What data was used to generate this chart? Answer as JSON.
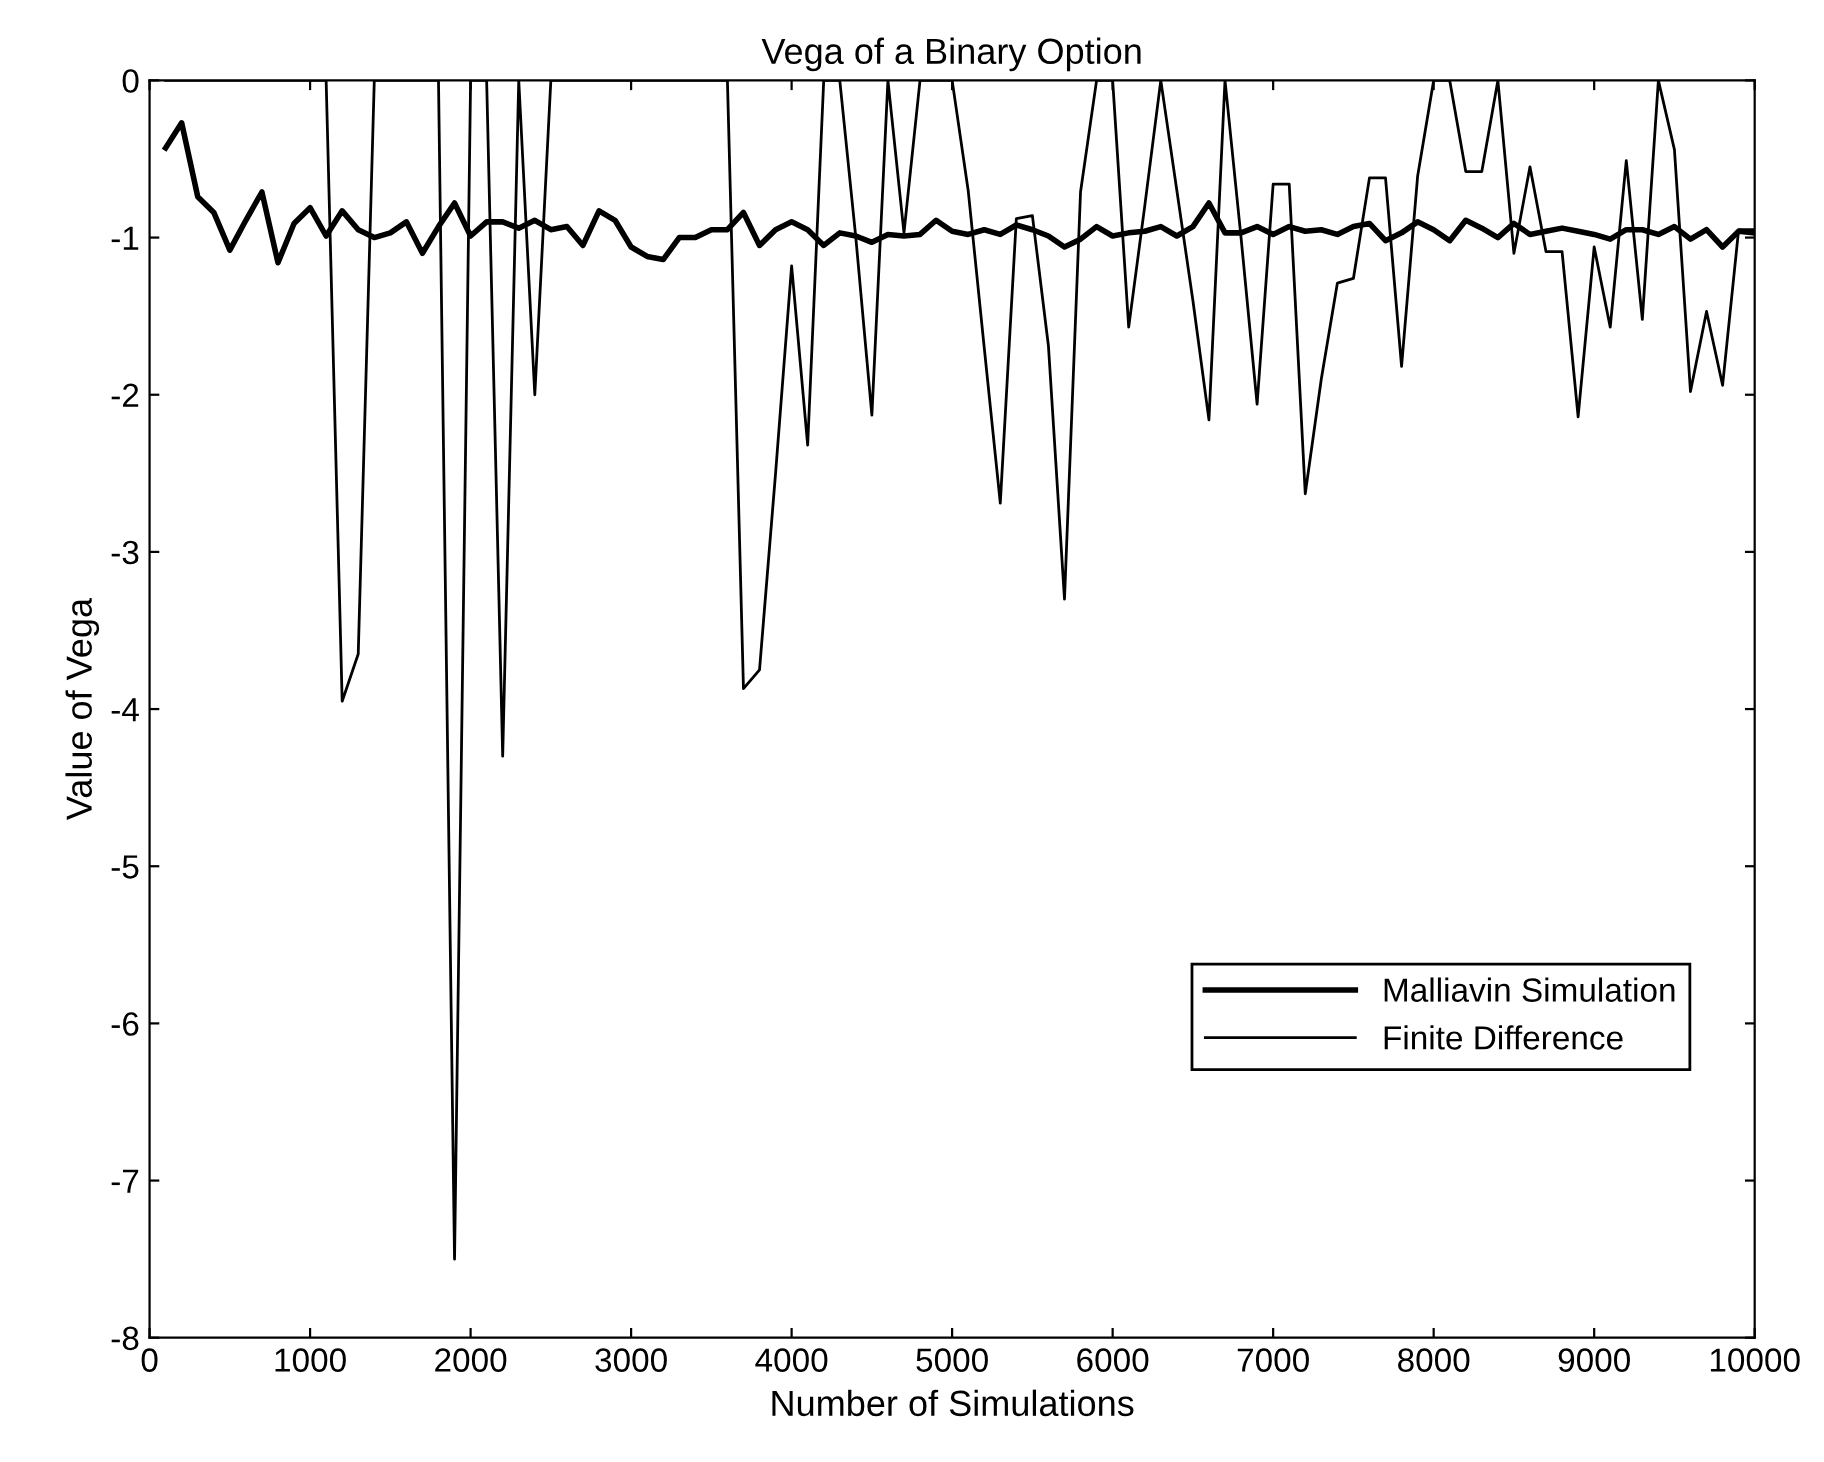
{
  "chart_data": {
    "type": "line",
    "title": "Vega of a Binary Option",
    "xlabel": "Number of Simulations",
    "ylabel": "Value of Vega",
    "x": [
      100,
      200,
      300,
      400,
      500,
      600,
      700,
      800,
      900,
      1000,
      1100,
      1200,
      1300,
      1400,
      1500,
      1600,
      1700,
      1800,
      1900,
      2000,
      2100,
      2200,
      2300,
      2400,
      2500,
      2600,
      2700,
      2800,
      2900,
      3000,
      3100,
      3200,
      3300,
      3400,
      3500,
      3600,
      3700,
      3800,
      3900,
      4000,
      4100,
      4200,
      4300,
      4400,
      4500,
      4600,
      4700,
      4800,
      4900,
      5000,
      5100,
      5200,
      5300,
      5400,
      5500,
      5600,
      5700,
      5800,
      5900,
      6000,
      6100,
      6200,
      6300,
      6400,
      6500,
      6600,
      6700,
      6800,
      6900,
      7000,
      7100,
      7200,
      7300,
      7400,
      7500,
      7600,
      7700,
      7800,
      7900,
      8000,
      8100,
      8200,
      8300,
      8400,
      8500,
      8600,
      8700,
      8800,
      8900,
      9000,
      9100,
      9200,
      9300,
      9400,
      9500,
      9600,
      9700,
      9800,
      9900,
      10000
    ],
    "series": [
      {
        "name": "Malliavin Simulation",
        "color": "#000000",
        "values": [
          -0.43,
          -0.27,
          -0.74,
          -0.84,
          -1.08,
          -0.89,
          -0.71,
          -1.16,
          -0.91,
          -0.81,
          -0.99,
          -0.83,
          -0.95,
          -1.0,
          -0.97,
          -0.9,
          -1.1,
          -0.93,
          -0.78,
          -0.99,
          -0.9,
          -0.9,
          -0.94,
          -0.89,
          -0.95,
          -0.93,
          -1.05,
          -0.83,
          -0.89,
          -1.06,
          -1.12,
          -1.14,
          -1.0,
          -1.0,
          -0.95,
          -0.95,
          -0.84,
          -1.05,
          -0.95,
          -0.9,
          -0.95,
          -1.05,
          -0.97,
          -0.99,
          -1.03,
          -0.98,
          -0.99,
          -0.98,
          -0.89,
          -0.96,
          -0.98,
          -0.95,
          -0.98,
          -0.92,
          -0.95,
          -0.99,
          -1.06,
          -1.01,
          -0.93,
          -0.99,
          -0.97,
          -0.96,
          -0.93,
          -0.99,
          -0.93,
          -0.78,
          -0.97,
          -0.97,
          -0.93,
          -0.98,
          -0.93,
          -0.96,
          -0.95,
          -0.98,
          -0.93,
          -0.91,
          -1.02,
          -0.97,
          -0.9,
          -0.95,
          -1.02,
          -0.89,
          -0.94,
          -1.0,
          -0.91,
          -0.98,
          -0.96,
          -0.94,
          -0.96,
          -0.98,
          -1.01,
          -0.95,
          -0.95,
          -0.98,
          -0.93,
          -1.01,
          -0.95,
          -1.06,
          -0.96,
          -0.97
        ]
      },
      {
        "name": "Finite Difference",
        "color": "#000000",
        "values": [
          0,
          0,
          0,
          0,
          0,
          0,
          0,
          0,
          0,
          0,
          0,
          -3.95,
          -3.65,
          0,
          0,
          0,
          0,
          0,
          -7.5,
          0,
          0,
          -4.3,
          0,
          -2.0,
          0,
          0,
          0,
          0,
          0,
          0,
          0,
          0,
          0,
          0,
          0,
          0,
          -3.87,
          -3.75,
          -2.5,
          -1.18,
          -2.32,
          0,
          0,
          -1.0,
          -2.13,
          0,
          -0.97,
          0,
          0,
          0,
          -0.7,
          -1.7,
          -2.69,
          -0.88,
          -0.86,
          -1.69,
          -3.3,
          -0.71,
          0,
          0,
          -1.57,
          -0.8,
          0,
          -0.7,
          -1.4,
          -2.16,
          0,
          -1.0,
          -2.06,
          -0.66,
          -0.66,
          -2.63,
          -1.9,
          -1.29,
          -1.26,
          -0.62,
          -0.62,
          -1.82,
          -0.61,
          0,
          0,
          -0.58,
          -0.58,
          0,
          -1.1,
          -0.55,
          -1.09,
          -1.09,
          -2.14,
          -1.06,
          -1.57,
          -0.51,
          -1.52,
          0,
          -0.44,
          -1.98,
          -1.47,
          -1.94,
          -0.95,
          -0.95
        ]
      }
    ],
    "xlim": [
      0,
      10000
    ],
    "xticks": [
      0,
      1000,
      2000,
      3000,
      4000,
      5000,
      6000,
      7000,
      8000,
      9000,
      10000
    ],
    "ylim": [
      -8,
      0
    ],
    "yticks": [
      -8,
      -7,
      -6,
      -5,
      -4,
      -3,
      -2,
      -1,
      0
    ],
    "grid": false,
    "legend": "bottom right",
    "marker": "none",
    "line_style": "solid"
  }
}
